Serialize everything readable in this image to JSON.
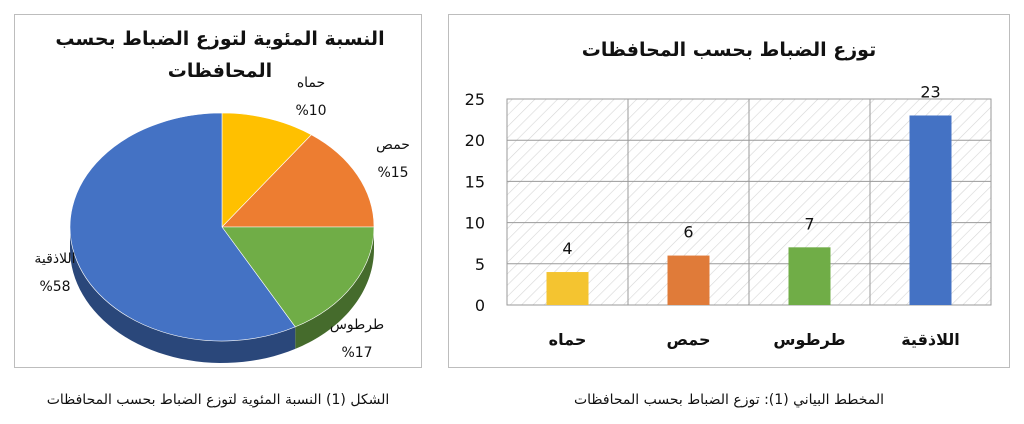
{
  "chart_data": [
    {
      "type": "pie",
      "title": "النسبة المئوية لتوزع الضباط بحسب المحافظات",
      "caption": "الشكل (1) النسبة المئوية لتوزع الضباط بحسب المحافظات",
      "legend": "none",
      "slices": [
        {
          "label": "حماه",
          "value": 10,
          "value_label": "%10",
          "color": "#FFC000"
        },
        {
          "label": "حمص",
          "value": 15,
          "value_label": "%15",
          "color": "#ED7D31"
        },
        {
          "label": "طرطوس",
          "value": 17,
          "value_label": "%17",
          "color": "#70AD47"
        },
        {
          "label": "اللاذقية",
          "value": 58,
          "value_label": "%58",
          "color": "#4472C4"
        }
      ]
    },
    {
      "type": "bar",
      "title": "توزع الضباط بحسب المحافظات",
      "caption": "المخطط البياني (1): توزع الضباط بحسب المحافظات",
      "categories": [
        "حماه",
        "حمص",
        "طرطوس",
        "اللاذقية"
      ],
      "values": [
        4,
        6,
        7,
        23
      ],
      "colors": [
        "#F4C430",
        "#E07B39",
        "#70AD47",
        "#4472C4"
      ],
      "ylim": [
        0,
        25
      ],
      "yticks": [
        0,
        5,
        10,
        15,
        20,
        25
      ],
      "grid": true,
      "legend": "none"
    }
  ]
}
